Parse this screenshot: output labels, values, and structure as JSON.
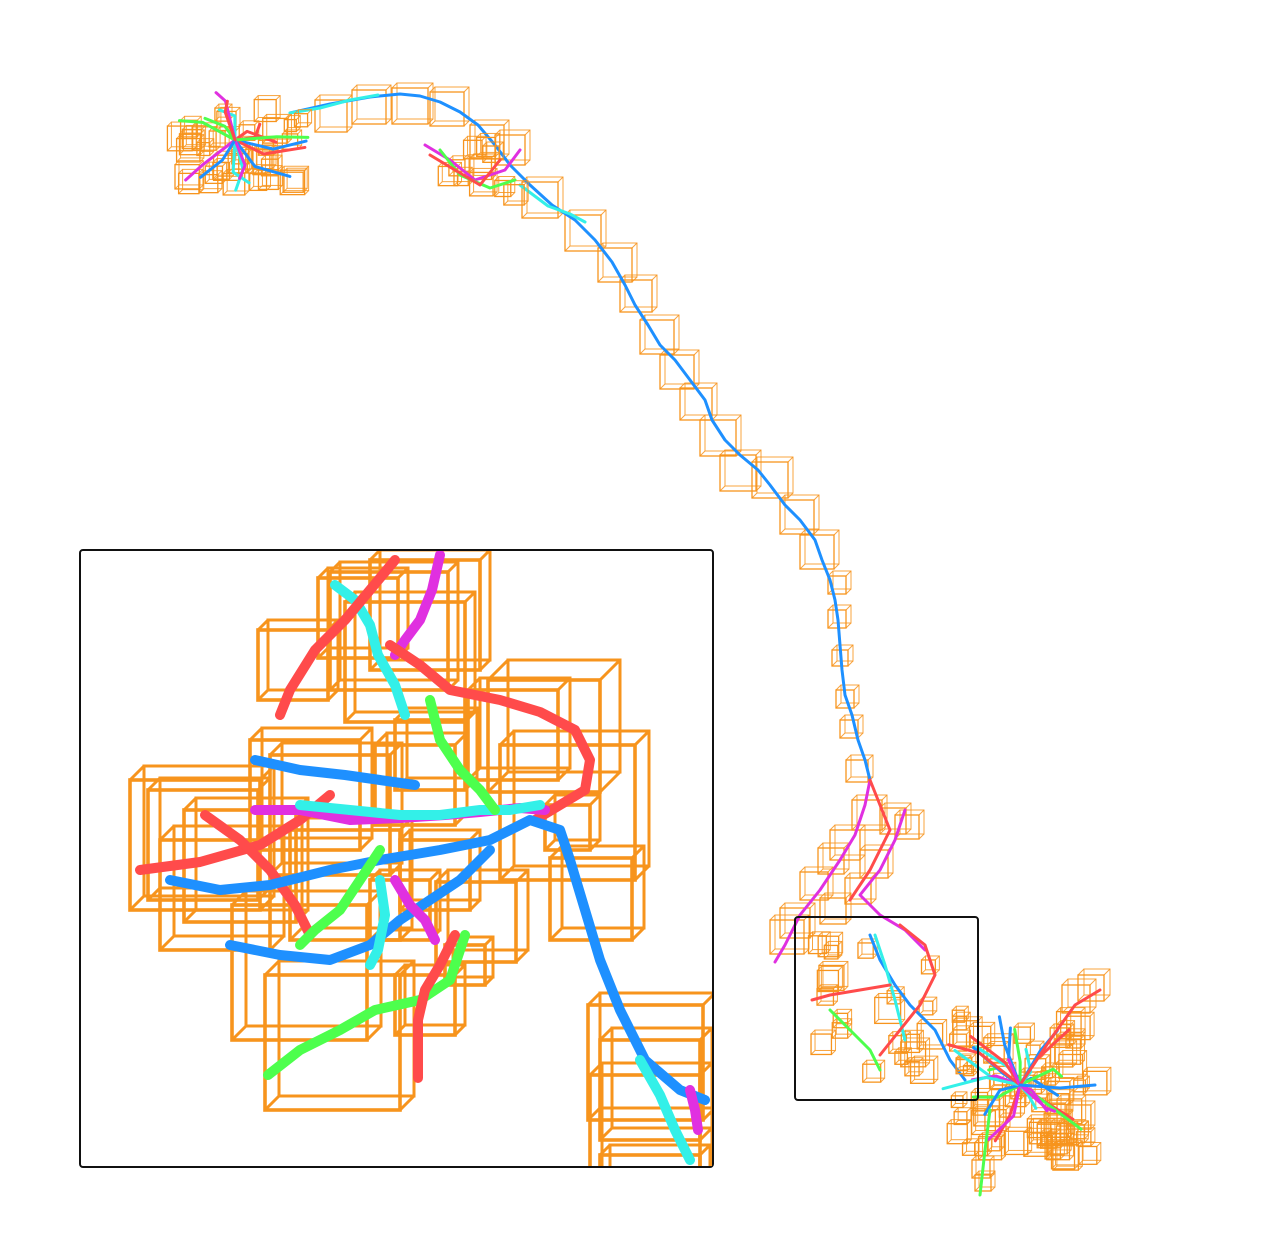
{
  "figure": {
    "description_visible_text": "",
    "colors": {
      "box": "#f7941d",
      "blue": "#1e90ff",
      "cyan": "#33f0e8",
      "red": "#ff4b4b",
      "green": "#4dff4d",
      "magenta": "#e030e0",
      "frame": "#111111"
    },
    "track_colors": [
      "blue",
      "cyan",
      "red",
      "green",
      "magenta"
    ]
  }
}
